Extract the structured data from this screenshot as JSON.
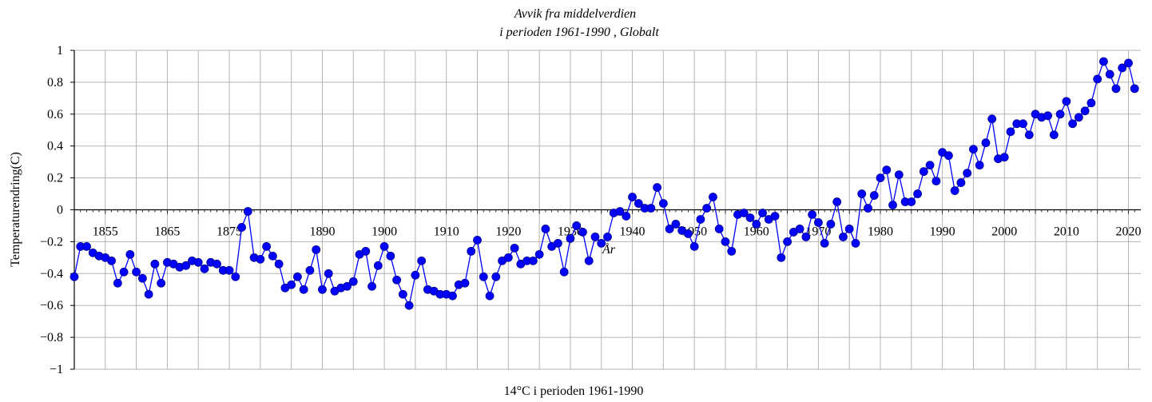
{
  "chart_data": {
    "type": "line",
    "title_line1": "Avvik fra middelverdien",
    "title_line2": "i perioden 1961-1990 , Globalt",
    "ylabel": "Temperaturendring(C)",
    "xlabel": "14°C i perioden 1961-1990",
    "x_unit_label": "År",
    "ylim": [
      -1,
      1
    ],
    "xlim": [
      1850,
      2022
    ],
    "grid": true,
    "y_ticks": [
      {
        "value": 1,
        "label": "1"
      },
      {
        "value": 0.8,
        "label": "0.8"
      },
      {
        "value": 0.6,
        "label": "0.6"
      },
      {
        "value": 0.4,
        "label": "0.4"
      },
      {
        "value": 0.2,
        "label": "0.2"
      },
      {
        "value": 0,
        "label": "0"
      },
      {
        "value": -0.2,
        "label": "−0.2"
      },
      {
        "value": -0.4,
        "label": "−0.4"
      },
      {
        "value": -0.6,
        "label": "−0.6"
      },
      {
        "value": -0.8,
        "label": "−0.8"
      },
      {
        "value": -1,
        "label": "−1"
      }
    ],
    "x_ticks": [
      {
        "value": 1855,
        "label": "1855"
      },
      {
        "value": 1865,
        "label": "1865"
      },
      {
        "value": 1875,
        "label": "1875"
      },
      {
        "value": 1890,
        "label": "1890"
      },
      {
        "value": 1900,
        "label": "1900"
      },
      {
        "value": 1910,
        "label": "1910"
      },
      {
        "value": 1920,
        "label": "1920"
      },
      {
        "value": 1930,
        "label": "1930"
      },
      {
        "value": 1940,
        "label": "1940"
      },
      {
        "value": 1950,
        "label": "1950"
      },
      {
        "value": 1960,
        "label": "1960"
      },
      {
        "value": 1970,
        "label": "1970"
      },
      {
        "value": 1980,
        "label": "1980"
      },
      {
        "value": 1990,
        "label": "1990"
      },
      {
        "value": 2000,
        "label": "2000"
      },
      {
        "value": 2010,
        "label": "2010"
      },
      {
        "value": 2020,
        "label": "2020"
      }
    ],
    "colors": {
      "line": "#0000ff",
      "marker": "#0000ff",
      "marker_edge": "#00008b",
      "grid": "#b4b4b4",
      "axis": "#000000"
    },
    "series": [
      {
        "x_start": 1850,
        "values": [
          -0.42,
          -0.23,
          -0.23,
          -0.27,
          -0.29,
          -0.3,
          -0.32,
          -0.46,
          -0.39,
          -0.28,
          -0.39,
          -0.43,
          -0.53,
          -0.34,
          -0.46,
          -0.33,
          -0.34,
          -0.36,
          -0.35,
          -0.32,
          -0.33,
          -0.37,
          -0.33,
          -0.34,
          -0.38,
          -0.38,
          -0.42,
          -0.11,
          -0.01,
          -0.3,
          -0.31,
          -0.23,
          -0.29,
          -0.34,
          -0.49,
          -0.47,
          -0.42,
          -0.5,
          -0.38,
          -0.25,
          -0.5,
          -0.4,
          -0.51,
          -0.49,
          -0.48,
          -0.45,
          -0.28,
          -0.26,
          -0.48,
          -0.35,
          -0.23,
          -0.29,
          -0.44,
          -0.53,
          -0.6,
          -0.41,
          -0.32,
          -0.5,
          -0.51,
          -0.53,
          -0.53,
          -0.54,
          -0.47,
          -0.46,
          -0.26,
          -0.19,
          -0.42,
          -0.54,
          -0.42,
          -0.32,
          -0.3,
          -0.24,
          -0.34,
          -0.32,
          -0.32,
          -0.28,
          -0.12,
          -0.23,
          -0.21,
          -0.39,
          -0.18,
          -0.1,
          -0.14,
          -0.32,
          -0.17,
          -0.21,
          -0.17,
          -0.02,
          -0.01,
          -0.04,
          0.08,
          0.04,
          0.01,
          0.01,
          0.14,
          0.04,
          -0.12,
          -0.09,
          -0.13,
          -0.15,
          -0.23,
          -0.06,
          0.01,
          0.08,
          -0.12,
          -0.2,
          -0.26,
          -0.03,
          -0.02,
          -0.05,
          -0.09,
          -0.02,
          -0.06,
          -0.04,
          -0.3,
          -0.2,
          -0.14,
          -0.12,
          -0.17,
          -0.03,
          -0.08,
          -0.21,
          -0.09,
          0.05,
          -0.17,
          -0.12,
          -0.21,
          0.1,
          0.01,
          0.09,
          0.2,
          0.25,
          0.03,
          0.22,
          0.05,
          0.05,
          0.1,
          0.24,
          0.28,
          0.18,
          0.36,
          0.34,
          0.12,
          0.17,
          0.23,
          0.38,
          0.28,
          0.42,
          0.57,
          0.32,
          0.33,
          0.49,
          0.54,
          0.54,
          0.47,
          0.6,
          0.58,
          0.59,
          0.47,
          0.6,
          0.68,
          0.54,
          0.58,
          0.62,
          0.67,
          0.82,
          0.93,
          0.85,
          0.76,
          0.89,
          0.92,
          0.76
        ]
      }
    ]
  }
}
